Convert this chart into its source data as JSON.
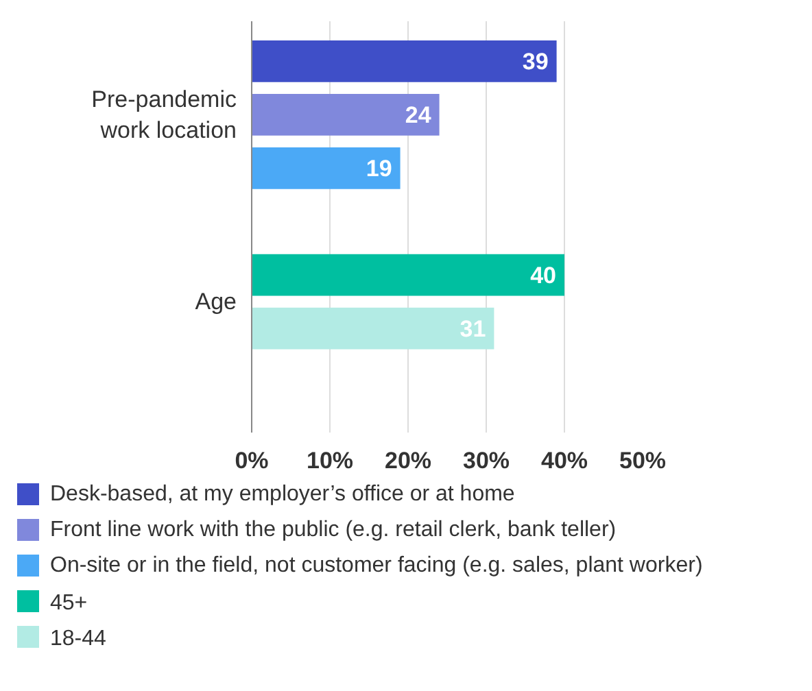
{
  "chart_data": {
    "type": "bar",
    "orientation": "horizontal",
    "categories": [
      "Pre-pandemic work location",
      "Age"
    ],
    "series": [
      {
        "name": "Desk-based, at my employer’s office or at home",
        "color": "#3f4fc8",
        "values": [
          39,
          null
        ]
      },
      {
        "name": "Front line work with the public (e.g. retail clerk, bank teller)",
        "color": "#8088dc",
        "values": [
          24,
          null
        ]
      },
      {
        "name": "On-site or in the field, not customer facing (e.g. sales, plant worker)",
        "color": "#4ba9f6",
        "values": [
          19,
          null
        ]
      },
      {
        "name": "45+",
        "color": "#00bfa0",
        "values": [
          null,
          40
        ]
      },
      {
        "name": "18-44",
        "color": "#b2ebe4",
        "values": [
          null,
          31
        ]
      }
    ],
    "xlim": [
      0,
      50
    ],
    "xticks": [
      {
        "value": 0,
        "label": "0%"
      },
      {
        "value": 10,
        "label": "10%"
      },
      {
        "value": 20,
        "label": "20%"
      },
      {
        "value": 30,
        "label": "30%"
      },
      {
        "value": 40,
        "label": "40%"
      },
      {
        "value": 50,
        "label": "50%"
      }
    ],
    "data_labels": true,
    "grid": "x",
    "legend": "bottom"
  }
}
